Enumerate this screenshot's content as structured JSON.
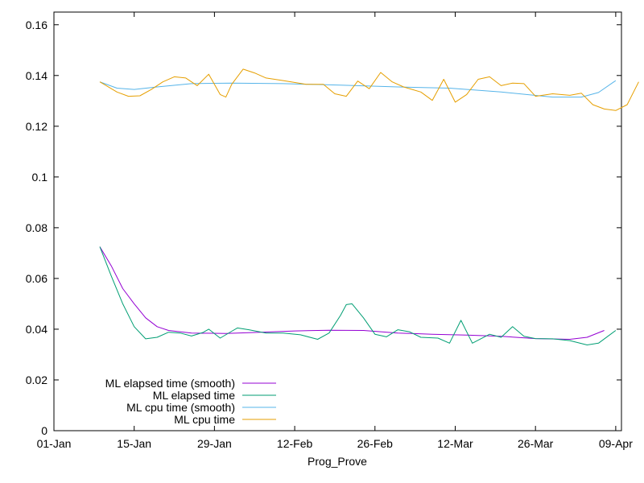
{
  "chart_data": {
    "type": "line",
    "title": "",
    "xlabel": "Prog_Prove",
    "ylabel": "",
    "x_type": "date",
    "xlim": [
      "01-Jan",
      "09-Apr"
    ],
    "ylim": [
      0,
      0.165
    ],
    "x_ticks": [
      "01-Jan",
      "15-Jan",
      "29-Jan",
      "12-Feb",
      "26-Feb",
      "12-Mar",
      "26-Mar",
      "09-Apr"
    ],
    "y_ticks": [
      "0",
      "0.02",
      "0.04",
      "0.06",
      "0.08",
      "0.1",
      "0.12",
      "0.14",
      "0.16"
    ],
    "y_tick_values": [
      0,
      0.02,
      0.04,
      0.06,
      0.08,
      0.1,
      0.12,
      0.14,
      0.16
    ],
    "grid": false,
    "legend_position": "bottom-left",
    "series": [
      {
        "name": "ML elapsed time (smooth)",
        "color": "#9400d3",
        "points": [
          [
            "2024-01-09",
            0.0725
          ],
          [
            "2024-01-11",
            0.065
          ],
          [
            "2024-01-13",
            0.056
          ],
          [
            "2024-01-15",
            0.05
          ],
          [
            "2024-01-17",
            0.0445
          ],
          [
            "2024-01-19",
            0.041
          ],
          [
            "2024-01-21",
            0.0395
          ],
          [
            "2024-01-25",
            0.0385
          ],
          [
            "2024-01-31",
            0.0383
          ],
          [
            "2024-02-06",
            0.0388
          ],
          [
            "2024-02-12",
            0.0393
          ],
          [
            "2024-02-18",
            0.0396
          ],
          [
            "2024-02-24",
            0.0395
          ],
          [
            "2024-03-01",
            0.0385
          ],
          [
            "2024-03-07",
            0.038
          ],
          [
            "2024-03-13",
            0.0377
          ],
          [
            "2024-03-19",
            0.0372
          ],
          [
            "2024-03-25",
            0.0363
          ],
          [
            "2024-03-31",
            0.036
          ],
          [
            "2024-04-03",
            0.0368
          ],
          [
            "2024-04-06",
            0.0395
          ]
        ]
      },
      {
        "name": "ML elapsed time",
        "color": "#009e73",
        "points": [
          [
            "2024-01-09",
            0.0725
          ],
          [
            "2024-01-11",
            0.061
          ],
          [
            "2024-01-13",
            0.05
          ],
          [
            "2024-01-15",
            0.041
          ],
          [
            "2024-01-17",
            0.0362
          ],
          [
            "2024-01-19",
            0.0368
          ],
          [
            "2024-01-21",
            0.0388
          ],
          [
            "2024-01-23",
            0.0385
          ],
          [
            "2024-01-25",
            0.0373
          ],
          [
            "2024-01-27",
            0.0387
          ],
          [
            "2024-01-28",
            0.04
          ],
          [
            "2024-01-30",
            0.0365
          ],
          [
            "2024-02-01",
            0.0392
          ],
          [
            "2024-02-02",
            0.0405
          ],
          [
            "2024-02-04",
            0.0398
          ],
          [
            "2024-02-07",
            0.0385
          ],
          [
            "2024-02-10",
            0.0385
          ],
          [
            "2024-02-13",
            0.0378
          ],
          [
            "2024-02-16",
            0.036
          ],
          [
            "2024-02-18",
            0.0385
          ],
          [
            "2024-02-20",
            0.0455
          ],
          [
            "2024-02-21",
            0.0497
          ],
          [
            "2024-02-22",
            0.05
          ],
          [
            "2024-02-24",
            0.0445
          ],
          [
            "2024-02-26",
            0.038
          ],
          [
            "2024-02-28",
            0.037
          ],
          [
            "2024-03-01",
            0.0398
          ],
          [
            "2024-03-03",
            0.039
          ],
          [
            "2024-03-05",
            0.0368
          ],
          [
            "2024-03-08",
            0.0365
          ],
          [
            "2024-03-10",
            0.0345
          ],
          [
            "2024-03-12",
            0.0435
          ],
          [
            "2024-03-14",
            0.0345
          ],
          [
            "2024-03-17",
            0.038
          ],
          [
            "2024-03-19",
            0.0368
          ],
          [
            "2024-03-21",
            0.041
          ],
          [
            "2024-03-23",
            0.0372
          ],
          [
            "2024-03-25",
            0.0363
          ],
          [
            "2024-03-28",
            0.0362
          ],
          [
            "2024-03-31",
            0.0355
          ],
          [
            "2024-04-03",
            0.0338
          ],
          [
            "2024-04-05",
            0.0345
          ],
          [
            "2024-04-08",
            0.0395
          ]
        ]
      },
      {
        "name": "ML cpu time (smooth)",
        "color": "#56b4e9",
        "points": [
          [
            "2024-01-09",
            0.1375
          ],
          [
            "2024-01-12",
            0.135
          ],
          [
            "2024-01-15",
            0.1345
          ],
          [
            "2024-01-19",
            0.1355
          ],
          [
            "2024-01-25",
            0.1368
          ],
          [
            "2024-02-01",
            0.137
          ],
          [
            "2024-02-10",
            0.1368
          ],
          [
            "2024-02-20",
            0.1362
          ],
          [
            "2024-03-01",
            0.1355
          ],
          [
            "2024-03-10",
            0.135
          ],
          [
            "2024-03-19",
            0.1335
          ],
          [
            "2024-03-28",
            0.1315
          ],
          [
            "2024-04-02",
            0.1315
          ],
          [
            "2024-04-05",
            0.1333
          ],
          [
            "2024-04-08",
            0.138
          ]
        ]
      },
      {
        "name": "ML cpu time",
        "color": "#e69f00",
        "points": [
          [
            "2024-01-09",
            0.1375
          ],
          [
            "2024-01-12",
            0.1335
          ],
          [
            "2024-01-14",
            0.1318
          ],
          [
            "2024-01-16",
            0.132
          ],
          [
            "2024-01-18",
            0.1345
          ],
          [
            "2024-01-20",
            0.1375
          ],
          [
            "2024-01-22",
            0.1395
          ],
          [
            "2024-01-24",
            0.139
          ],
          [
            "2024-01-26",
            0.136
          ],
          [
            "2024-01-28",
            0.1405
          ],
          [
            "2024-01-30",
            0.1325
          ],
          [
            "2024-01-31",
            0.1315
          ],
          [
            "2024-02-01",
            0.1365
          ],
          [
            "2024-02-03",
            0.1425
          ],
          [
            "2024-02-05",
            0.141
          ],
          [
            "2024-02-07",
            0.139
          ],
          [
            "2024-02-10",
            0.138
          ],
          [
            "2024-02-14",
            0.1365
          ],
          [
            "2024-02-17",
            0.1365
          ],
          [
            "2024-02-19",
            0.1328
          ],
          [
            "2024-02-21",
            0.1318
          ],
          [
            "2024-02-23",
            0.1378
          ],
          [
            "2024-02-25",
            0.1348
          ],
          [
            "2024-02-27",
            0.1412
          ],
          [
            "2024-02-29",
            0.1375
          ],
          [
            "2024-03-02",
            0.1355
          ],
          [
            "2024-03-05",
            0.1335
          ],
          [
            "2024-03-07",
            0.1302
          ],
          [
            "2024-03-09",
            0.1385
          ],
          [
            "2024-03-11",
            0.1295
          ],
          [
            "2024-03-13",
            0.1325
          ],
          [
            "2024-03-15",
            0.1385
          ],
          [
            "2024-03-17",
            0.1395
          ],
          [
            "2024-03-19",
            0.136
          ],
          [
            "2024-03-21",
            0.137
          ],
          [
            "2024-03-23",
            0.1368
          ],
          [
            "2024-03-25",
            0.1318
          ],
          [
            "2024-03-28",
            0.1328
          ],
          [
            "2024-03-31",
            0.1322
          ],
          [
            "2024-04-02",
            0.133
          ],
          [
            "2024-04-04",
            0.1285
          ],
          [
            "2024-04-06",
            0.1268
          ],
          [
            "2024-04-08",
            0.1262
          ],
          [
            "2024-04-10",
            0.1285
          ],
          [
            "2024-04-12",
            0.1375
          ]
        ]
      }
    ]
  }
}
